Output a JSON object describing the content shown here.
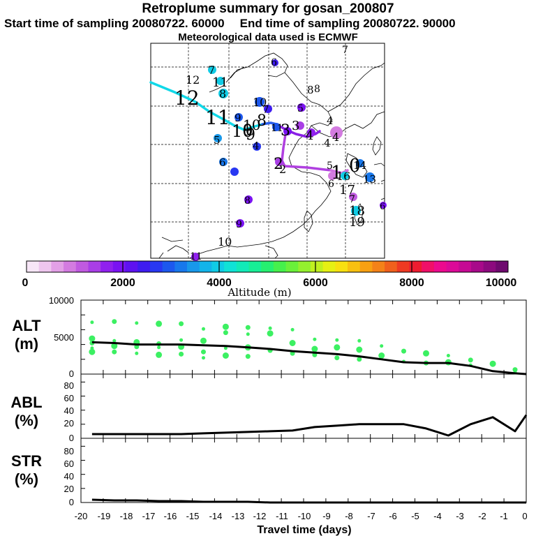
{
  "header": {
    "title": "Retroplume summary for gosan_200807",
    "start_label": "Start time of sampling 20080722. 60000",
    "end_label": "End time of sampling 20080722. 90000",
    "met_label": "Meteorological data used is ECMWF"
  },
  "colorbar": {
    "ticks": [
      "0",
      "2000",
      "4000",
      "6000",
      "8000",
      "10000"
    ],
    "label": "Altitude (m)",
    "colors": [
      "#f7e6f7",
      "#eec6ee",
      "#e2a0e6",
      "#d37be0",
      "#c05ae0",
      "#a93ee6",
      "#9020ee",
      "#7a12f2",
      "#5e12f0",
      "#3e1cf0",
      "#2838f2",
      "#1c58ee",
      "#1878ec",
      "#1898ea",
      "#12b4ea",
      "#10cce6",
      "#10e2d6",
      "#12eab8",
      "#18ee96",
      "#26f070",
      "#46f04c",
      "#6af03a",
      "#94f02e",
      "#c0f020",
      "#e6f014",
      "#f8e010",
      "#f8c010",
      "#f8a012",
      "#f48218",
      "#f0601c",
      "#ee3a22",
      "#ee1c30",
      "#f01068",
      "#ec0a8e",
      "#dc0a98",
      "#c60a94",
      "#a80a8a",
      "#8c0a7e",
      "#6e0a6e"
    ]
  },
  "map_labels": [
    {
      "t": "7",
      "c": "#000"
    },
    {
      "t": "6",
      "c": "#000"
    },
    {
      "t": "7",
      "c": "#000"
    },
    {
      "t": "12",
      "c": "#000"
    },
    {
      "t": "11",
      "c": "#000"
    },
    {
      "t": "8",
      "c": "#000"
    },
    {
      "t": "12",
      "c": "#000"
    },
    {
      "t": "11",
      "c": "#000"
    },
    {
      "t": "10",
      "c": "#000"
    },
    {
      "t": "9",
      "c": "#000"
    },
    {
      "t": "8",
      "c": "#000"
    },
    {
      "t": "9",
      "c": "#000"
    },
    {
      "t": "10",
      "c": "#000"
    },
    {
      "t": "5",
      "c": "#000"
    },
    {
      "t": "4",
      "c": "#000"
    },
    {
      "t": "6",
      "c": "#000"
    },
    {
      "t": "7",
      "c": "#000"
    },
    {
      "t": "8",
      "c": "#000"
    },
    {
      "t": "9",
      "c": "#000"
    },
    {
      "t": "10",
      "c": "#000"
    },
    {
      "t": "11",
      "c": "#000"
    },
    {
      "t": "5",
      "c": "#000"
    },
    {
      "t": "8",
      "c": "#000"
    },
    {
      "t": "4",
      "c": "#000"
    },
    {
      "t": "4",
      "c": "#000"
    },
    {
      "t": "4",
      "c": "#000"
    },
    {
      "t": "3",
      "c": "#000"
    },
    {
      "t": "3",
      "c": "#000"
    },
    {
      "t": "2",
      "c": "#000"
    },
    {
      "t": "2",
      "c": "#000"
    },
    {
      "t": "4",
      "c": "#000"
    },
    {
      "t": "5",
      "c": "#000"
    },
    {
      "t": "1",
      "c": "#000"
    },
    {
      "t": "0",
      "c": "#000"
    },
    {
      "t": "14",
      "c": "#000"
    },
    {
      "t": "16",
      "c": "#000"
    },
    {
      "t": "6",
      "c": "#000"
    },
    {
      "t": "17",
      "c": "#000"
    },
    {
      "t": "13",
      "c": "#000"
    },
    {
      "t": "7",
      "c": "#000"
    },
    {
      "t": "18",
      "c": "#000"
    },
    {
      "t": "19",
      "c": "#000"
    },
    {
      "t": "8",
      "c": "#000"
    },
    {
      "t": "9",
      "c": "#000"
    },
    {
      "t": "10",
      "c": "#000"
    },
    {
      "t": "11",
      "c": "#000"
    },
    {
      "t": "6",
      "c": "#000"
    }
  ],
  "chart_data": [
    {
      "type": "scatter",
      "panel": "ALT",
      "ylabel_line1": "ALT",
      "ylabel_line2": "(m)",
      "ylim": [
        0,
        10000
      ],
      "yticks": [
        "10000",
        "5000",
        "0"
      ],
      "mean_line": {
        "x": [
          -19.5,
          -18.5,
          -17.5,
          -16.5,
          -15.5,
          -14.5,
          -13.5,
          -12.5,
          -11.5,
          -10.5,
          -9.5,
          -8.5,
          -7.5,
          -6.5,
          -5.5,
          -4.5,
          -3.5,
          -2.5,
          -1.5,
          -0.5,
          0
        ],
        "y": [
          4300,
          4200,
          4000,
          4000,
          4000,
          3900,
          3800,
          3600,
          3400,
          3100,
          2900,
          2700,
          2400,
          2000,
          1600,
          1500,
          1500,
          1100,
          400,
          100,
          0
        ]
      },
      "points": {
        "x": [
          -19.5,
          -19.5,
          -19.5,
          -19.5,
          -19.5,
          -18.5,
          -18.5,
          -18.5,
          -18.5,
          -17.5,
          -17.5,
          -17.5,
          -17.5,
          -16.5,
          -16.5,
          -16.5,
          -16.5,
          -15.5,
          -15.5,
          -15.5,
          -15.5,
          -14.5,
          -14.5,
          -14.5,
          -14.5,
          -13.5,
          -13.5,
          -13.5,
          -13.5,
          -12.5,
          -12.5,
          -12.5,
          -12.5,
          -11.5,
          -11.5,
          -11.5,
          -10.5,
          -10.5,
          -10.5,
          -9.5,
          -9.5,
          -9.5,
          -8.5,
          -8.5,
          -8.5,
          -7.5,
          -7.5,
          -7.5,
          -6.5,
          -6.5,
          -5.5,
          -5.5,
          -4.5,
          -4.5,
          -3.5,
          -3.5,
          -2.5,
          -2.5,
          -1.5,
          -0.5,
          -0.5
        ],
        "y": [
          7000,
          4800,
          4200,
          3500,
          3000,
          7100,
          4500,
          3800,
          3000,
          6900,
          4300,
          3700,
          2800,
          6800,
          4100,
          3600,
          2600,
          6800,
          4600,
          3700,
          2700,
          6100,
          4500,
          3000,
          2200,
          6400,
          5600,
          3500,
          2500,
          6300,
          5400,
          3600,
          2400,
          6200,
          5500,
          3200,
          6000,
          4200,
          2800,
          4700,
          3400,
          2600,
          4600,
          3600,
          2200,
          4500,
          3300,
          2000,
          3800,
          2500,
          3100,
          1700,
          2800,
          1500,
          2500,
          1600,
          1900,
          1200,
          1400,
          600,
          200
        ]
      }
    },
    {
      "type": "line",
      "panel": "ABL",
      "ylabel_line1": "ABL",
      "ylabel_line2": "(%)",
      "ylim": [
        0,
        90
      ],
      "yticks": [
        "80",
        "60",
        "40",
        "20",
        "0"
      ],
      "x": [
        -19.5,
        -18.5,
        -17.5,
        -16.5,
        -15.5,
        -14.5,
        -13.5,
        -12.5,
        -11.5,
        -10.5,
        -9.5,
        -8.5,
        -7.5,
        -6.5,
        -5.5,
        -4.5,
        -3.5,
        -2.5,
        -1.5,
        -0.5,
        0
      ],
      "y": [
        6,
        6,
        6,
        6,
        6,
        7,
        8,
        9,
        10,
        11,
        16,
        18,
        20,
        20,
        20,
        14,
        4,
        20,
        30,
        10,
        33
      ]
    },
    {
      "type": "line",
      "panel": "STR",
      "ylabel_line1": "STR",
      "ylabel_line2": "(%)",
      "ylim": [
        0,
        90
      ],
      "yticks": [
        "80",
        "60",
        "40",
        "20",
        "0"
      ],
      "x": [
        -19.5,
        -18.5,
        -17.5,
        -16.5,
        -15.5,
        -14.5,
        -13.5,
        -12.5,
        -11.5,
        -10.5,
        -9.5,
        -8.5,
        -7.5,
        -6.5,
        -5.5,
        -4.5,
        -3.5,
        -2.5,
        -1.5,
        -0.5,
        0
      ],
      "y": [
        4,
        3,
        3,
        2,
        2,
        1,
        1,
        1,
        0,
        0,
        0,
        0,
        0,
        0,
        0,
        0,
        0,
        0,
        0,
        0,
        0
      ]
    }
  ],
  "xaxis": {
    "ticks": [
      "-20",
      "-19",
      "-18",
      "-17",
      "-16",
      "-15",
      "-14",
      "-13",
      "-12",
      "-11",
      "-10",
      "-9",
      "-8",
      "-7",
      "-6",
      "-5",
      "-4",
      "-3",
      "-2",
      "-1",
      "0"
    ],
    "label": "Travel time (days)"
  }
}
